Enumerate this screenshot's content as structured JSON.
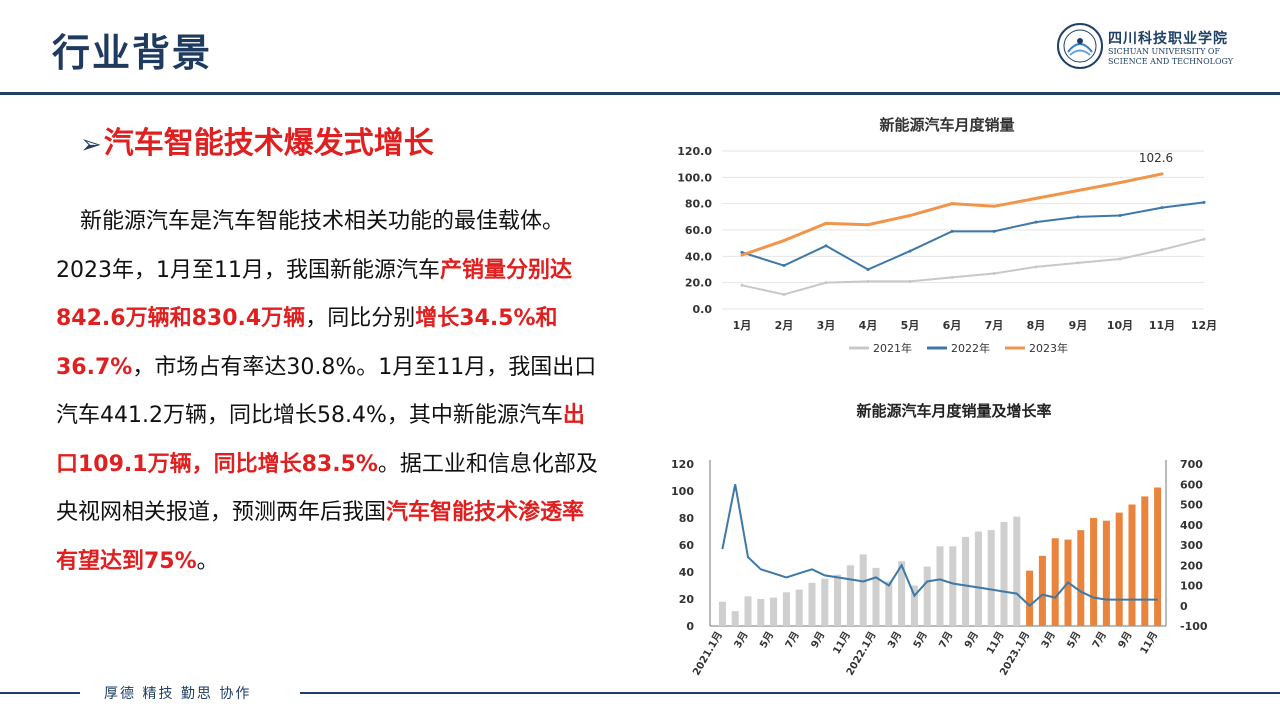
{
  "slide": {
    "title": "行业背景",
    "logo": {
      "cn": "四川科技职业学院",
      "en_line1": "SICHUAN UNIVERSITY OF",
      "en_line2": "SCIENCE AND TECHNOLOGY"
    },
    "heading": "汽车智能技术爆发式增长",
    "footer": "厚德 精技 勤思 协作",
    "body_segments": [
      {
        "text": "新能源汽车是汽车智能技术相关功能的最佳载体。2023年，1月至11月，我国新能源汽车",
        "hl": false
      },
      {
        "text": "产销量分别达842.6万辆和830.4万辆",
        "hl": true
      },
      {
        "text": "，同比分别",
        "hl": false
      },
      {
        "text": "增长34.5%和36.7%",
        "hl": true
      },
      {
        "text": "，市场占有率达30.8%。1月至11月，我国出口汽车441.2万辆，同比增长58.4%，其中新能源汽车",
        "hl": false
      },
      {
        "text": "出口109.1万辆，同比增长83.5%",
        "hl": true
      },
      {
        "text": "。据工业和信息化部及央视网相关报道，预测两年后我国",
        "hl": false
      },
      {
        "text": "汽车智能技术渗透率有望达到75%",
        "hl": true
      },
      {
        "text": "。",
        "hl": false
      }
    ]
  },
  "colors": {
    "title": "#1f3a5f",
    "accent_red": "#e02020",
    "navy": "#1e3f66",
    "series_2021": "#c8c8c8",
    "series_2022": "#3d78a8",
    "series_2023": "#f0954a",
    "bar_gray": "#cfcfcf",
    "bar_orange": "#e8843c"
  },
  "chart_data": [
    {
      "type": "line",
      "title": "新能源汽车月度销量",
      "categories": [
        "1月",
        "2月",
        "3月",
        "4月",
        "5月",
        "6月",
        "7月",
        "8月",
        "9月",
        "10月",
        "11月",
        "12月"
      ],
      "ylim": [
        0,
        120
      ],
      "yticks": [
        "0.0",
        "20.0",
        "40.0",
        "60.0",
        "80.0",
        "100.0",
        "120.0"
      ],
      "grid": true,
      "legend_position": "bottom",
      "series": [
        {
          "name": "2021年",
          "color": "#c8c8c8",
          "values": [
            18,
            11,
            20,
            21,
            21,
            24,
            27,
            32,
            35,
            38,
            45,
            53
          ]
        },
        {
          "name": "2022年",
          "color": "#3d78a8",
          "values": [
            43,
            33,
            48,
            30,
            44,
            59,
            59,
            66,
            70,
            71,
            77,
            81
          ]
        },
        {
          "name": "2023年",
          "color": "#f0954a",
          "values": [
            41,
            52,
            65,
            64,
            71,
            80,
            78,
            84,
            90,
            96,
            102.6,
            null
          ]
        }
      ],
      "annotations": [
        {
          "series": "2023年",
          "category": "11月",
          "label": "102.6"
        }
      ]
    },
    {
      "type": "bar",
      "title": "新能源汽车月度销量及增长率",
      "categories": [
        "2021.1月",
        "2月",
        "3月",
        "4月",
        "5月",
        "6月",
        "7月",
        "8月",
        "9月",
        "10月",
        "11月",
        "12月",
        "2022.1月",
        "2月",
        "3月",
        "4月",
        "5月",
        "6月",
        "7月",
        "8月",
        "9月",
        "10月",
        "11月",
        "12月",
        "2023.1月",
        "2月",
        "3月",
        "4月",
        "5月",
        "6月",
        "7月",
        "8月",
        "9月",
        "10月",
        "11月"
      ],
      "tick_labels": [
        "2021.1月",
        "3月",
        "5月",
        "7月",
        "9月",
        "11月",
        "2022.1月",
        "3月",
        "5月",
        "7月",
        "9月",
        "11月",
        "2023.1月",
        "3月",
        "5月",
        "7月",
        "9月",
        "11月"
      ],
      "ylim_left": [
        0,
        120
      ],
      "yticks_left": [
        "0",
        "20",
        "40",
        "60",
        "80",
        "100",
        "120"
      ],
      "ylim_right": [
        -100,
        700
      ],
      "yticks_right": [
        "-100",
        "0",
        "100",
        "200",
        "300",
        "400",
        "500",
        "600",
        "700"
      ],
      "series": [
        {
          "type": "bar",
          "values": [
            18,
            11,
            22,
            20,
            21,
            25,
            27,
            32,
            35,
            38,
            45,
            53,
            43,
            33,
            48,
            30,
            44,
            59,
            59,
            66,
            70,
            71,
            77,
            81,
            41,
            52,
            65,
            64,
            71,
            80,
            78,
            84,
            90,
            96,
            102.6
          ]
        },
        {
          "type": "line",
          "axis": "right",
          "values": [
            280,
            600,
            240,
            180,
            160,
            140,
            160,
            180,
            150,
            140,
            130,
            120,
            140,
            100,
            200,
            50,
            120,
            130,
            110,
            100,
            90,
            80,
            70,
            60,
            0,
            55,
            40,
            115,
            70,
            40,
            30,
            30,
            30,
            30,
            30
          ]
        }
      ]
    }
  ]
}
